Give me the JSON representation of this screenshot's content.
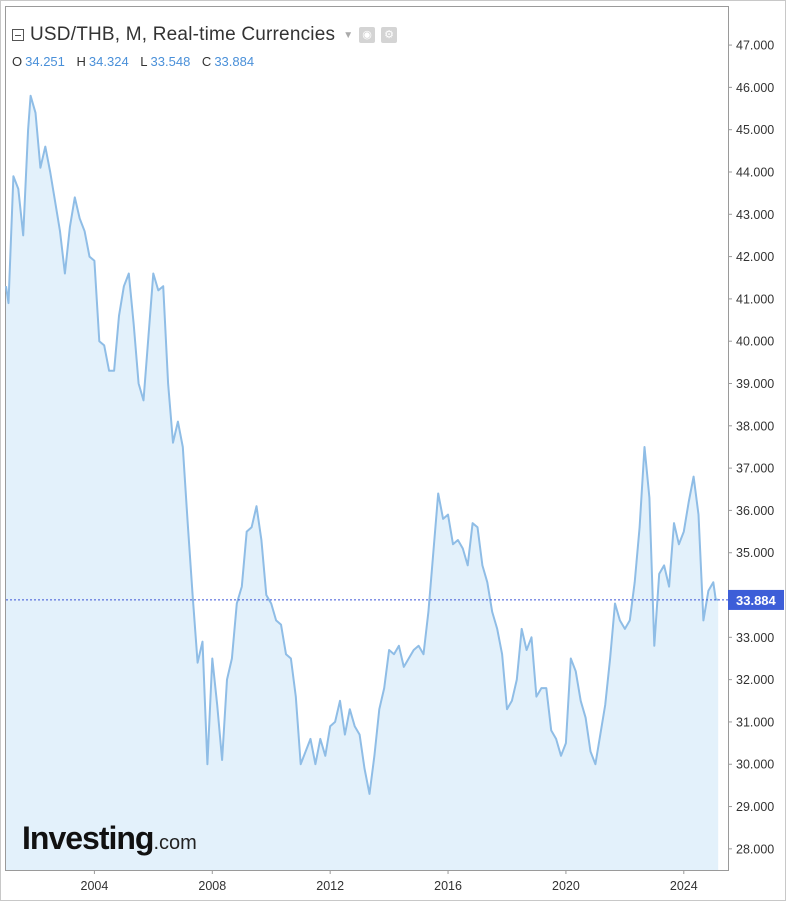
{
  "header": {
    "title": "USD/THB, M, Real-time Currencies",
    "ohlc": [
      {
        "key": "O",
        "value": "34.251"
      },
      {
        "key": "H",
        "value": "34.324"
      },
      {
        "key": "L",
        "value": "33.548"
      },
      {
        "key": "C",
        "value": "33.884"
      }
    ]
  },
  "logo": {
    "main": "Investing",
    "suffix": ".com"
  },
  "colors": {
    "line": "#8fbde6",
    "area": "#e3f1fb",
    "current": "#3b55d6",
    "label_bg": "#3d5ed8"
  },
  "chart_data": {
    "type": "area",
    "title": "USD/THB, M, Real-time Currencies",
    "xlabel": "",
    "ylabel": "",
    "x_ticks": [
      "2004",
      "2008",
      "2012",
      "2016",
      "2020",
      "2024"
    ],
    "y_ticks": [
      "28.000",
      "29.000",
      "30.000",
      "31.000",
      "32.000",
      "33.000",
      "34.000",
      "35.000",
      "36.000",
      "37.000",
      "38.000",
      "39.000",
      "40.000",
      "41.000",
      "42.000",
      "43.000",
      "44.000",
      "45.000",
      "46.000",
      "47.000"
    ],
    "ylim": [
      27.5,
      47.9
    ],
    "xlim": [
      "2001-01",
      "2025-07"
    ],
    "current_value": "33.884",
    "grid": false,
    "series": [
      {
        "points": [
          [
            "2001-01",
            41.3
          ],
          [
            "2001-02",
            40.9
          ],
          [
            "2001-04",
            43.9
          ],
          [
            "2001-06",
            43.6
          ],
          [
            "2001-08",
            42.5
          ],
          [
            "2001-10",
            45.0
          ],
          [
            "2001-11",
            45.8
          ],
          [
            "2002-01",
            45.4
          ],
          [
            "2002-03",
            44.1
          ],
          [
            "2002-05",
            44.6
          ],
          [
            "2002-07",
            44.0
          ],
          [
            "2002-09",
            43.3
          ],
          [
            "2002-11",
            42.6
          ],
          [
            "2003-01",
            41.6
          ],
          [
            "2003-03",
            42.7
          ],
          [
            "2003-05",
            43.4
          ],
          [
            "2003-07",
            42.9
          ],
          [
            "2003-09",
            42.6
          ],
          [
            "2003-11",
            42.0
          ],
          [
            "2004-01",
            41.9
          ],
          [
            "2004-03",
            40.0
          ],
          [
            "2004-05",
            39.9
          ],
          [
            "2004-07",
            39.3
          ],
          [
            "2004-09",
            39.3
          ],
          [
            "2004-11",
            40.6
          ],
          [
            "2005-01",
            41.3
          ],
          [
            "2005-03",
            41.6
          ],
          [
            "2005-05",
            40.4
          ],
          [
            "2005-07",
            39.0
          ],
          [
            "2005-09",
            38.6
          ],
          [
            "2005-11",
            40.1
          ],
          [
            "2006-01",
            41.6
          ],
          [
            "2006-03",
            41.2
          ],
          [
            "2006-05",
            41.3
          ],
          [
            "2006-07",
            39.0
          ],
          [
            "2006-09",
            37.6
          ],
          [
            "2006-11",
            38.1
          ],
          [
            "2007-01",
            37.5
          ],
          [
            "2007-03",
            35.7
          ],
          [
            "2007-05",
            34.0
          ],
          [
            "2007-07",
            32.4
          ],
          [
            "2007-09",
            32.9
          ],
          [
            "2007-11",
            30.0
          ],
          [
            "2008-01",
            32.5
          ],
          [
            "2008-03",
            31.4
          ],
          [
            "2008-05",
            30.1
          ],
          [
            "2008-07",
            32.0
          ],
          [
            "2008-09",
            32.5
          ],
          [
            "2008-11",
            33.8
          ],
          [
            "2009-01",
            34.2
          ],
          [
            "2009-03",
            35.5
          ],
          [
            "2009-05",
            35.6
          ],
          [
            "2009-07",
            36.1
          ],
          [
            "2009-09",
            35.3
          ],
          [
            "2009-11",
            34.0
          ],
          [
            "2010-01",
            33.8
          ],
          [
            "2010-03",
            33.4
          ],
          [
            "2010-05",
            33.3
          ],
          [
            "2010-07",
            32.6
          ],
          [
            "2010-09",
            32.5
          ],
          [
            "2010-11",
            31.6
          ],
          [
            "2011-01",
            30.0
          ],
          [
            "2011-03",
            30.3
          ],
          [
            "2011-05",
            30.6
          ],
          [
            "2011-07",
            30.0
          ],
          [
            "2011-09",
            30.6
          ],
          [
            "2011-11",
            30.2
          ],
          [
            "2012-01",
            30.9
          ],
          [
            "2012-03",
            31.0
          ],
          [
            "2012-05",
            31.5
          ],
          [
            "2012-07",
            30.7
          ],
          [
            "2012-09",
            31.3
          ],
          [
            "2012-11",
            30.9
          ],
          [
            "2013-01",
            30.7
          ],
          [
            "2013-03",
            29.9
          ],
          [
            "2013-05",
            29.3
          ],
          [
            "2013-07",
            30.2
          ],
          [
            "2013-09",
            31.3
          ],
          [
            "2013-11",
            31.8
          ],
          [
            "2014-01",
            32.7
          ],
          [
            "2014-03",
            32.6
          ],
          [
            "2014-05",
            32.8
          ],
          [
            "2014-07",
            32.3
          ],
          [
            "2014-09",
            32.5
          ],
          [
            "2014-11",
            32.7
          ],
          [
            "2015-01",
            32.8
          ],
          [
            "2015-03",
            32.6
          ],
          [
            "2015-05",
            33.6
          ],
          [
            "2015-07",
            35.0
          ],
          [
            "2015-09",
            36.4
          ],
          [
            "2015-11",
            35.8
          ],
          [
            "2016-01",
            35.9
          ],
          [
            "2016-03",
            35.2
          ],
          [
            "2016-05",
            35.3
          ],
          [
            "2016-07",
            35.1
          ],
          [
            "2016-09",
            34.7
          ],
          [
            "2016-11",
            35.7
          ],
          [
            "2017-01",
            35.6
          ],
          [
            "2017-03",
            34.7
          ],
          [
            "2017-05",
            34.3
          ],
          [
            "2017-07",
            33.6
          ],
          [
            "2017-09",
            33.2
          ],
          [
            "2017-11",
            32.6
          ],
          [
            "2018-01",
            31.3
          ],
          [
            "2018-03",
            31.5
          ],
          [
            "2018-05",
            32.0
          ],
          [
            "2018-07",
            33.2
          ],
          [
            "2018-09",
            32.7
          ],
          [
            "2018-11",
            33.0
          ],
          [
            "2019-01",
            31.6
          ],
          [
            "2019-03",
            31.8
          ],
          [
            "2019-05",
            31.8
          ],
          [
            "2019-07",
            30.8
          ],
          [
            "2019-09",
            30.6
          ],
          [
            "2019-11",
            30.2
          ],
          [
            "2020-01",
            30.5
          ],
          [
            "2020-03",
            32.5
          ],
          [
            "2020-05",
            32.2
          ],
          [
            "2020-07",
            31.5
          ],
          [
            "2020-09",
            31.1
          ],
          [
            "2020-11",
            30.3
          ],
          [
            "2021-01",
            30.0
          ],
          [
            "2021-03",
            30.7
          ],
          [
            "2021-05",
            31.4
          ],
          [
            "2021-07",
            32.5
          ],
          [
            "2021-09",
            33.8
          ],
          [
            "2021-11",
            33.4
          ],
          [
            "2022-01",
            33.2
          ],
          [
            "2022-03",
            33.4
          ],
          [
            "2022-05",
            34.3
          ],
          [
            "2022-07",
            35.6
          ],
          [
            "2022-09",
            37.5
          ],
          [
            "2022-11",
            36.3
          ],
          [
            "2023-01",
            32.8
          ],
          [
            "2023-03",
            34.5
          ],
          [
            "2023-05",
            34.7
          ],
          [
            "2023-07",
            34.2
          ],
          [
            "2023-09",
            35.7
          ],
          [
            "2023-11",
            35.2
          ],
          [
            "2024-01",
            35.5
          ],
          [
            "2024-03",
            36.2
          ],
          [
            "2024-05",
            36.8
          ],
          [
            "2024-07",
            35.9
          ],
          [
            "2024-09",
            33.4
          ],
          [
            "2024-11",
            34.1
          ],
          [
            "2025-01",
            34.3
          ],
          [
            "2025-02",
            33.9
          ],
          [
            "2025-03",
            33.884
          ]
        ]
      }
    ]
  }
}
